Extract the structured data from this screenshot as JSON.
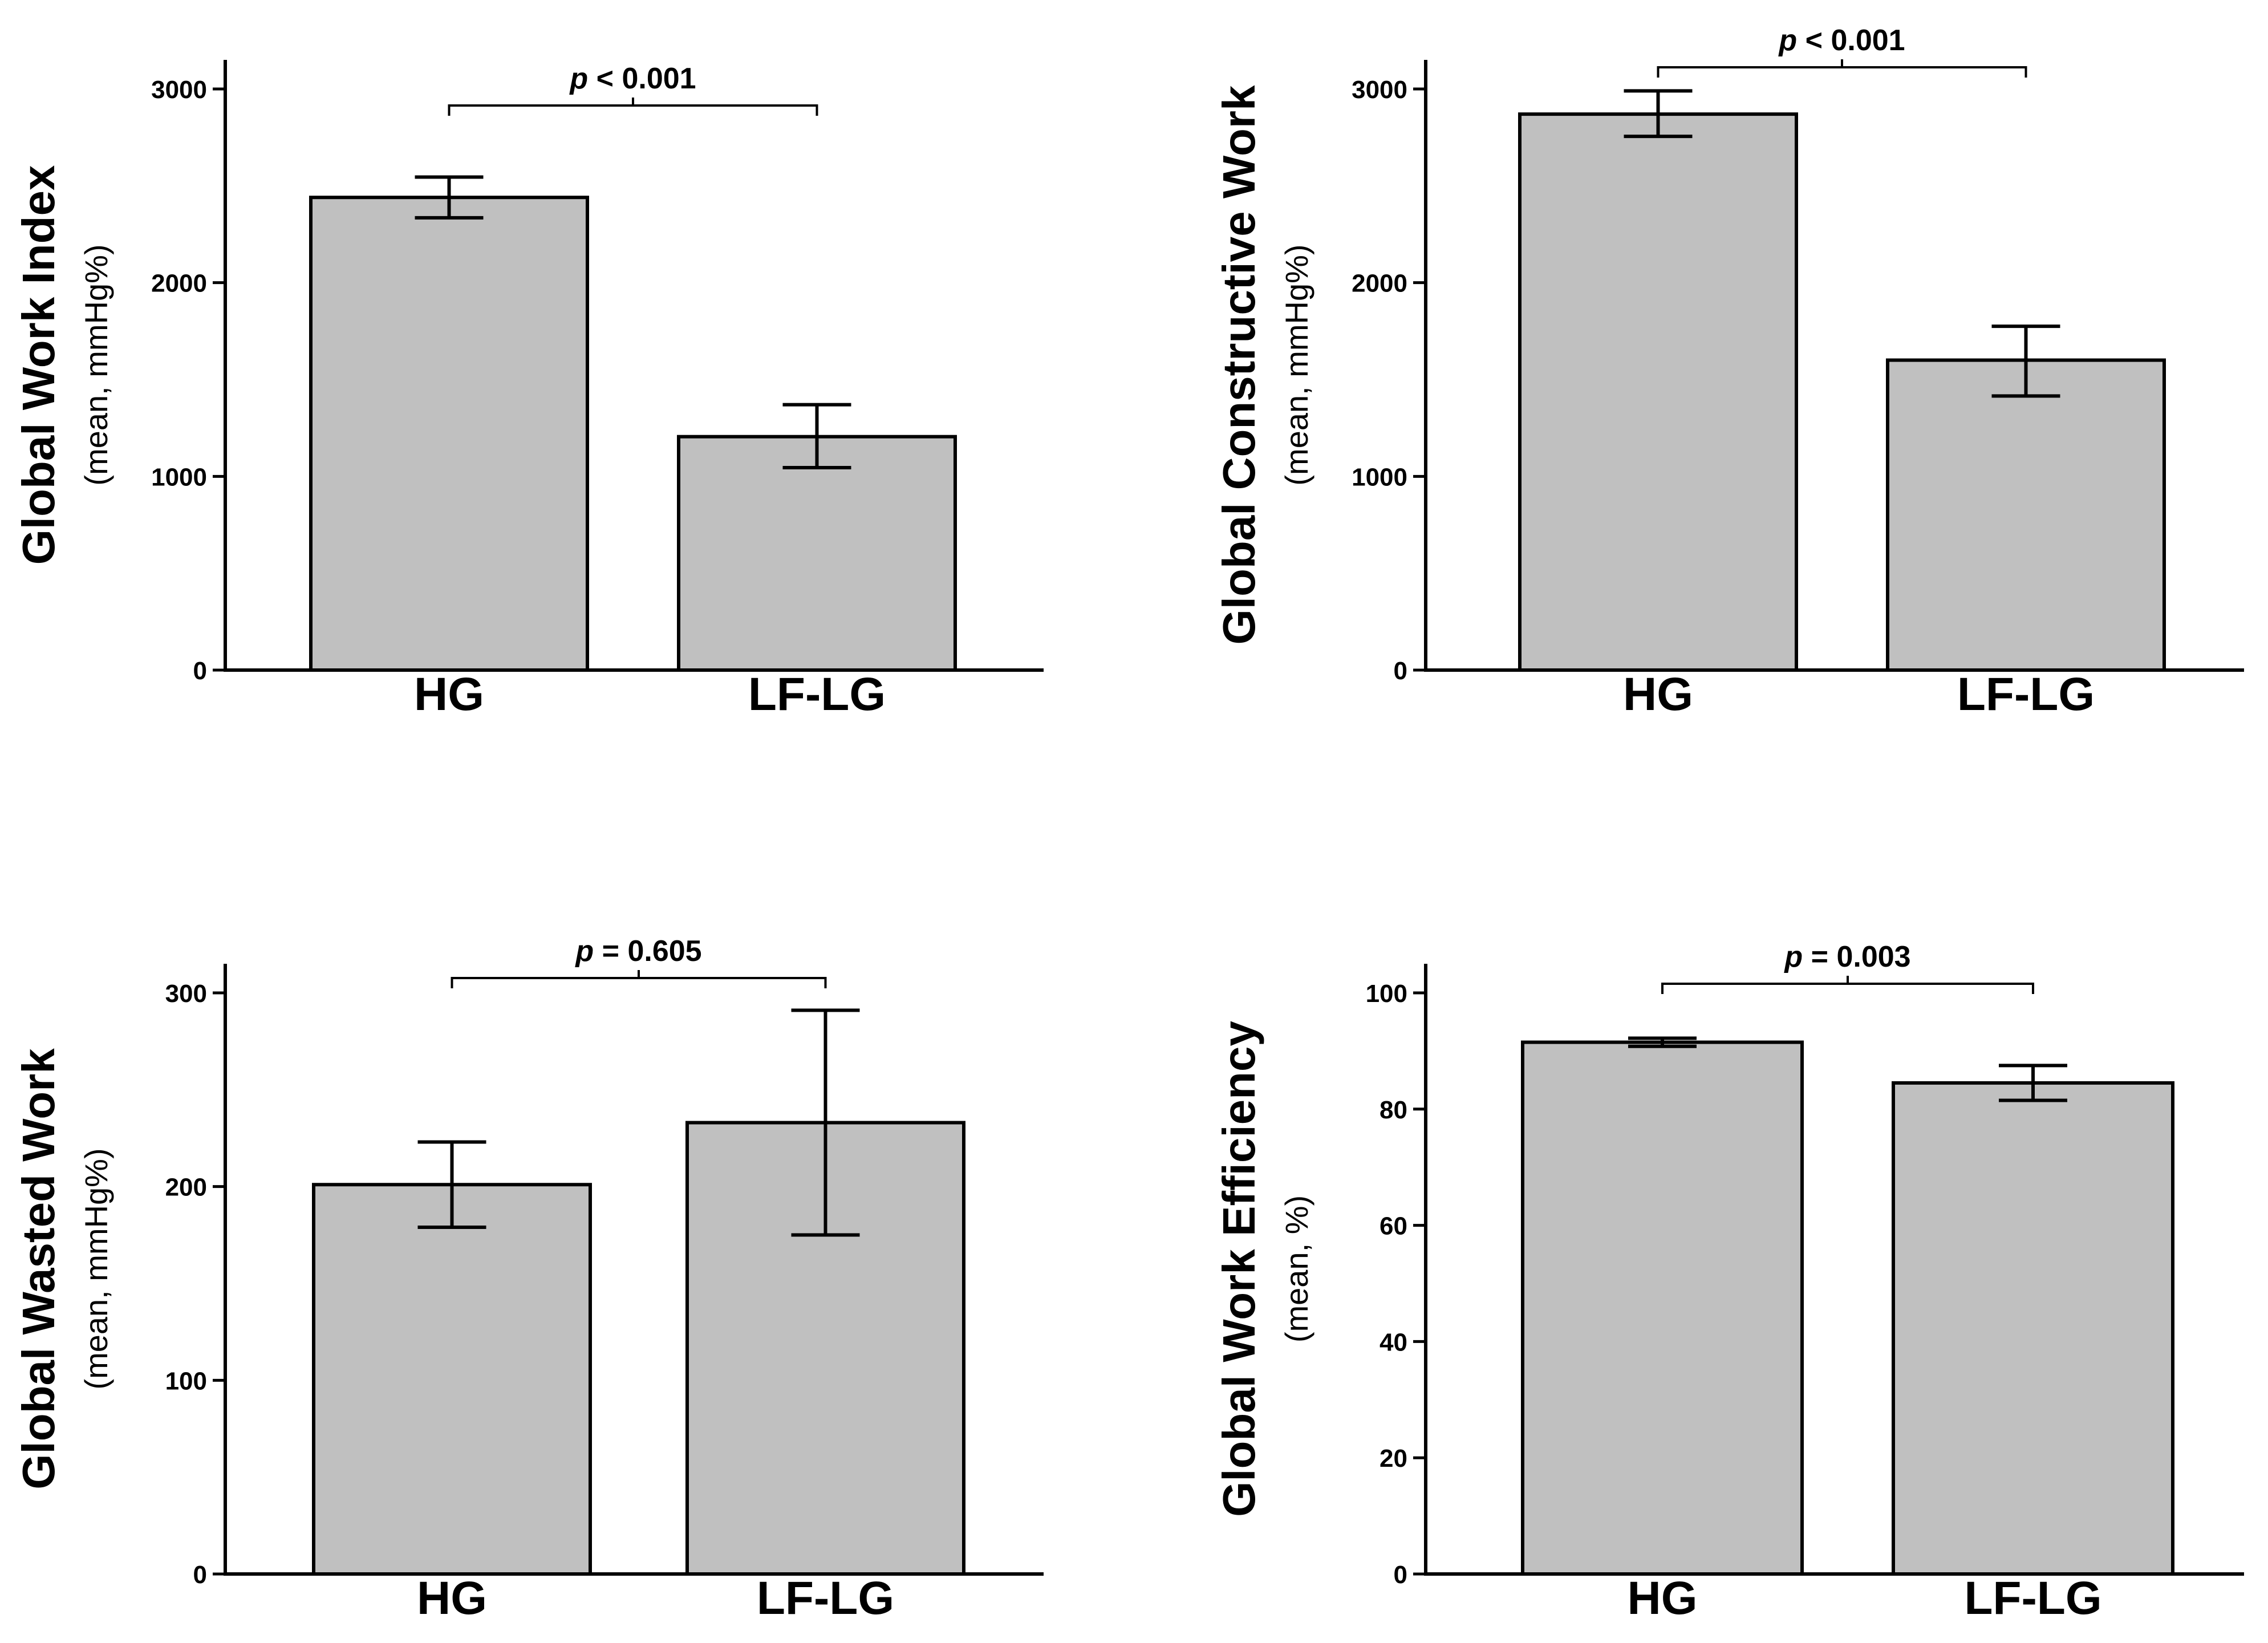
{
  "chart_data": [
    {
      "type": "bar",
      "title": "",
      "ylabel": "Global Work Index",
      "ylabel_sub": "(mean, mmHg%)",
      "categories": [
        "HG",
        "LF-LG"
      ],
      "values": [
        2440,
        1205
      ],
      "error_upper": [
        2545,
        1370
      ],
      "error_lower": [
        2335,
        1045
      ],
      "ylim": [
        0,
        3150
      ],
      "yticks": [
        0,
        1000,
        2000,
        3000
      ],
      "tick_labels": [
        "0",
        "1000",
        "2000",
        "3000"
      ],
      "p_label": "p",
      "p_value": "< 0.001",
      "bar_color": "#c0c0c0"
    },
    {
      "type": "bar",
      "title": "",
      "ylabel": "Global Constructive Work",
      "ylabel_sub": "(mean, mmHg%)",
      "categories": [
        "HG",
        "LF-LG"
      ],
      "values": [
        2870,
        1600
      ],
      "error_upper": [
        2990,
        1775
      ],
      "error_lower": [
        2755,
        1415
      ],
      "ylim": [
        0,
        3150
      ],
      "yticks": [
        0,
        1000,
        2000,
        3000
      ],
      "tick_labels": [
        "0",
        "1000",
        "2000",
        "3000"
      ],
      "p_label": "p",
      "p_value": "< 0.001",
      "bar_color": "#c0c0c0"
    },
    {
      "type": "bar",
      "title": "",
      "ylabel": "Global Wasted Work",
      "ylabel_sub": "(mean, mmHg%)",
      "categories": [
        "HG",
        "LF-LG"
      ],
      "values": [
        201,
        233
      ],
      "error_upper": [
        223,
        291
      ],
      "error_lower": [
        179,
        175
      ],
      "ylim": [
        0,
        315
      ],
      "yticks": [
        0,
        100,
        200,
        300
      ],
      "tick_labels": [
        "0",
        "100",
        "200",
        "300"
      ],
      "p_label": "p",
      "p_value": "= 0.605",
      "bar_color": "#c0c0c0"
    },
    {
      "type": "bar",
      "title": "",
      "ylabel": "Global Work Efficiency",
      "ylabel_sub": "(mean, %)",
      "categories": [
        "HG",
        "LF-LG"
      ],
      "values": [
        91.5,
        84.5
      ],
      "error_upper": [
        92.2,
        87.5
      ],
      "error_lower": [
        90.8,
        81.5
      ],
      "ylim": [
        0,
        105
      ],
      "yticks": [
        0,
        20,
        40,
        60,
        80,
        100
      ],
      "tick_labels": [
        "0",
        "20",
        "40",
        "60",
        "80",
        "100"
      ],
      "p_label": "p",
      "p_value": "= 0.003",
      "bar_color": "#c0c0c0"
    }
  ]
}
